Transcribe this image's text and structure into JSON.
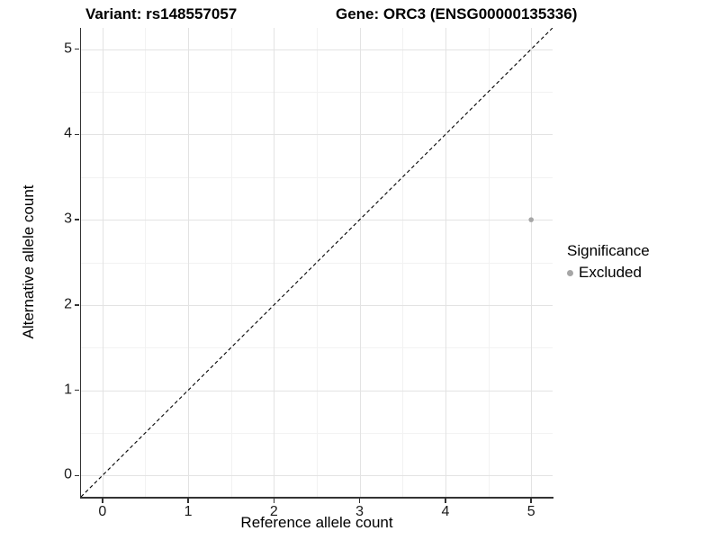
{
  "chart_data": {
    "type": "scatter",
    "titles": {
      "left": "Variant: rs148557057",
      "right": "Gene: ORC3 (ENSG00000135336)"
    },
    "xlabel": "Reference allele count",
    "ylabel": "Alternative allele count",
    "x_ticks": [
      0,
      1,
      2,
      3,
      4,
      5
    ],
    "y_ticks": [
      0,
      1,
      2,
      3,
      4,
      5
    ],
    "xlim": [
      -0.25,
      5.25
    ],
    "ylim": [
      -0.25,
      5.25
    ],
    "grid": {
      "major": true,
      "minor": true
    },
    "identity_line": {
      "style": "dashed",
      "color": "#000000",
      "from": -0.25,
      "to": 5.25
    },
    "legend": {
      "title": "Significance",
      "position": "right",
      "entries": [
        {
          "label": "Excluded",
          "color": "#a6a6a6"
        }
      ]
    },
    "series": [
      {
        "name": "Excluded",
        "color": "#a6a6a6",
        "points": [
          [
            5,
            3
          ]
        ]
      }
    ],
    "colors": {
      "background": "#ffffff",
      "grid_major": "#e3e3e3",
      "grid_minor": "#f2f2f2",
      "axis": "#333333",
      "text": "#000000"
    }
  }
}
